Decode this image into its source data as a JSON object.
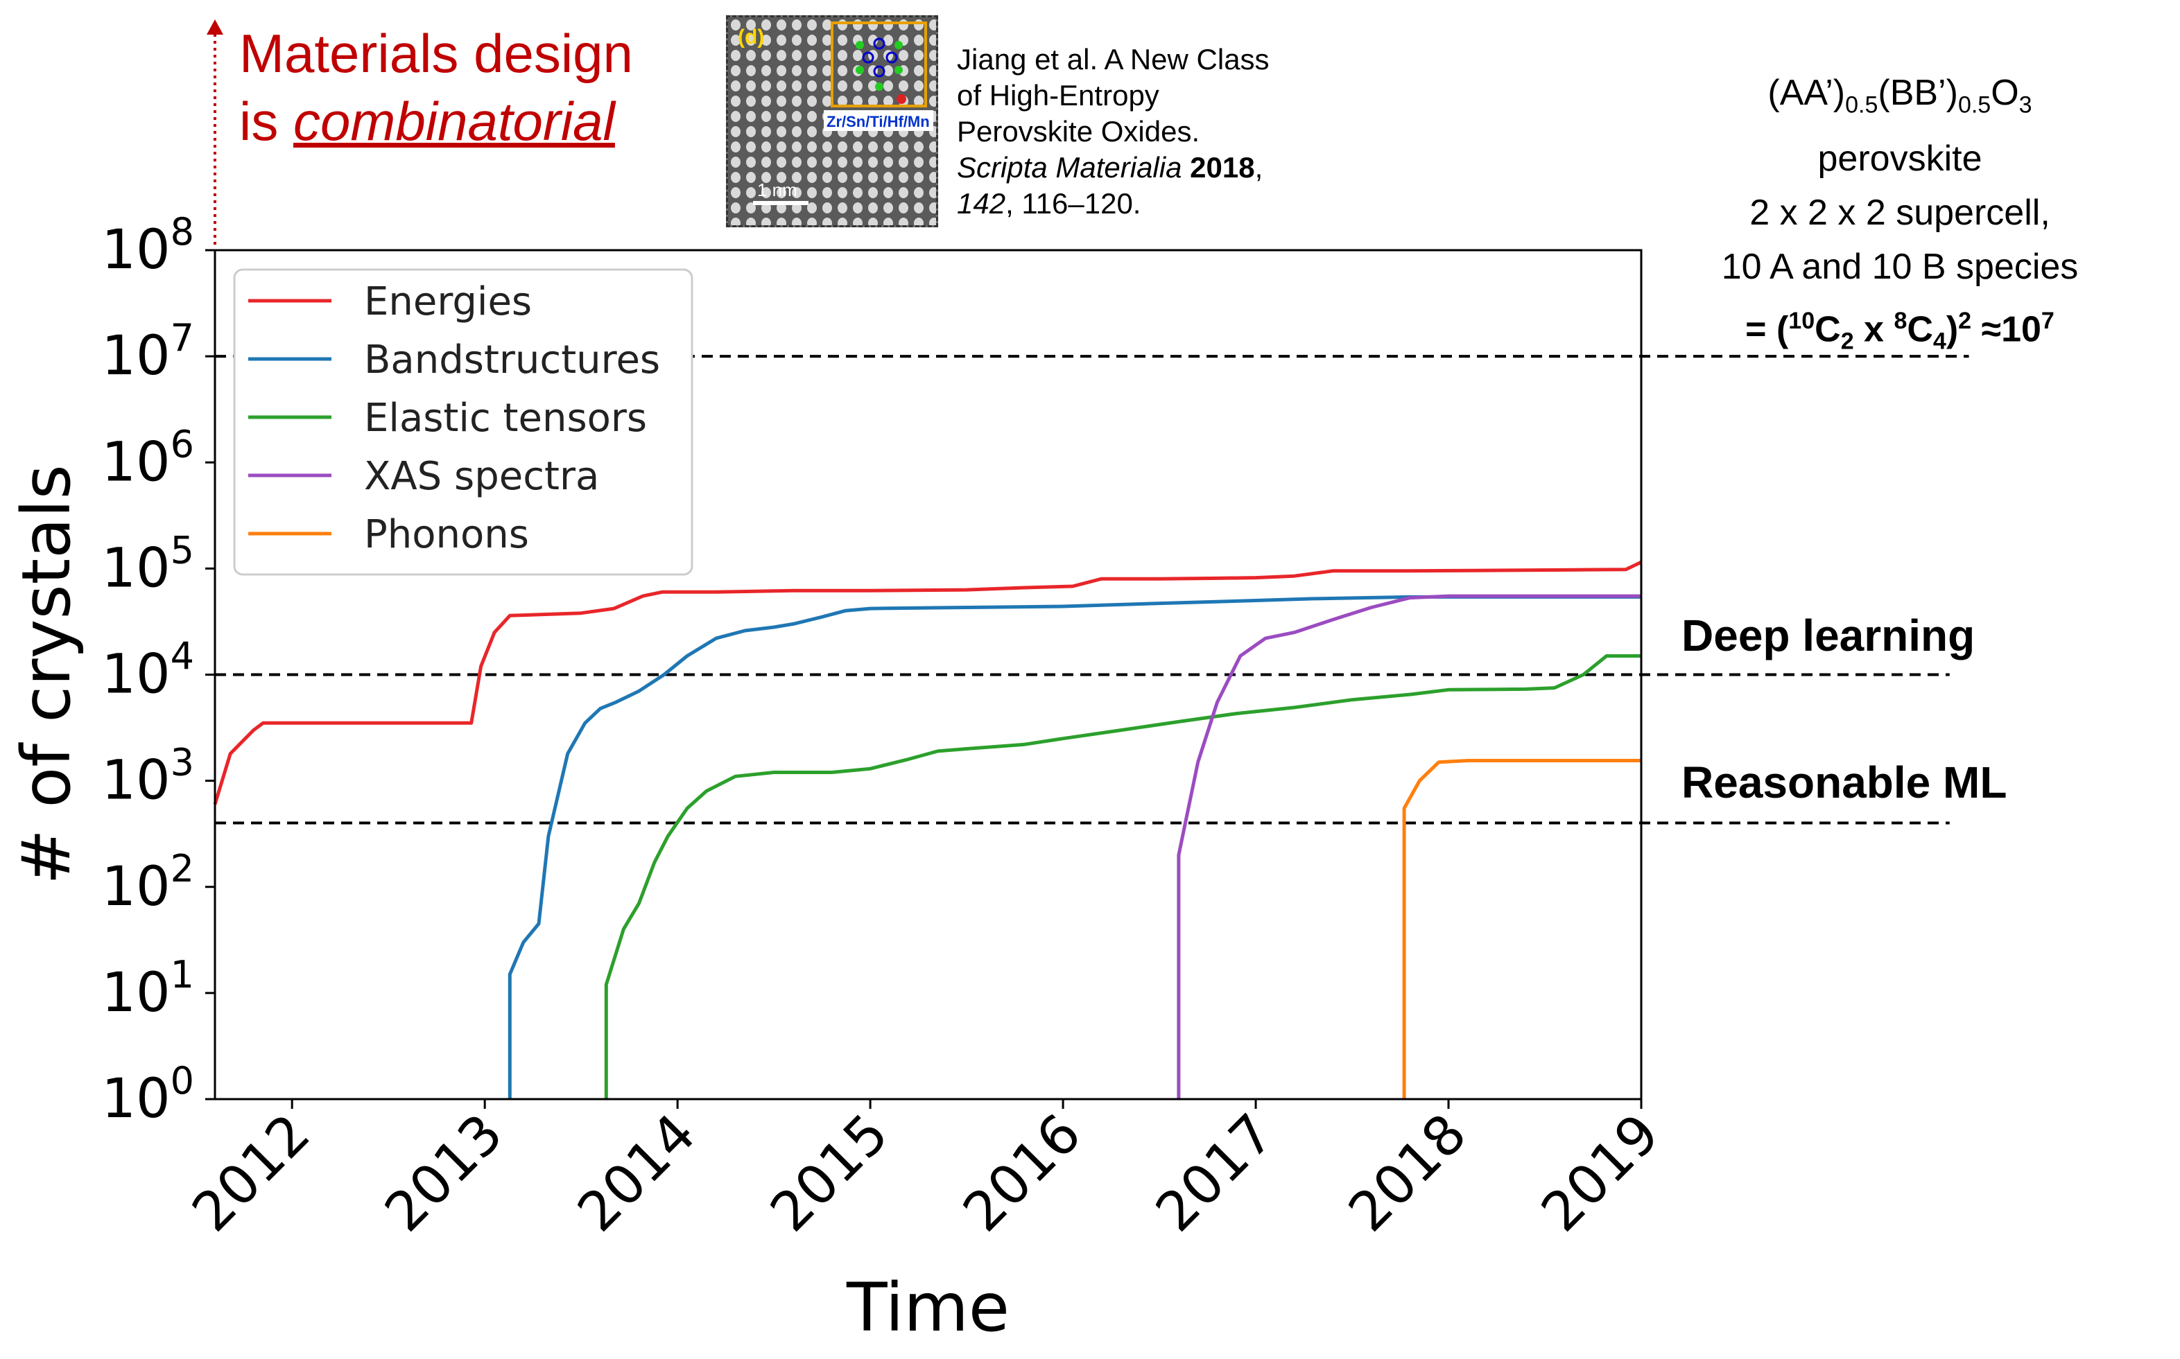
{
  "callout": {
    "line1": "Materials design",
    "line2_prefix": "is ",
    "line2_em": "combinatorial"
  },
  "inset_image": {
    "panel_label": "(d)",
    "scale_label": "1 nm",
    "element_label": "Zr/Sn/Ti/Hf/Mn"
  },
  "citation": {
    "line1": "Jiang et al. A New Class",
    "line2": "of High-Entropy",
    "line3": "Perovskite Oxides.",
    "journal": "Scripta Materialia",
    "year": "2018",
    "volume": "142",
    "pages": ", 116–120."
  },
  "formula": {
    "line1_a": "(AA’)",
    "line1_sub1": "0.5",
    "line1_b": "(BB’)",
    "line1_sub2": "0.5",
    "line1_c": "O",
    "line1_sub3": "3",
    "line2": "perovskite",
    "line3": "2 x 2 x 2 supercell,",
    "line4": "10 A and 10 B species",
    "line5_a": "= (",
    "line5_sup1": "10",
    "line5_b": "C",
    "line5_sub1": "2",
    "line5_c": " x ",
    "line5_sup2": "8",
    "line5_d": "C",
    "line5_sub2": "4",
    "line5_e": ")",
    "line5_sup3": "2",
    "line5_f": " ≈10",
    "line5_sup4": "7"
  },
  "thresholds": {
    "deep_learning": "Deep learning",
    "reasonable_ml": "Reasonable ML"
  },
  "chart_data": {
    "type": "line",
    "xlabel": "Time",
    "ylabel": "# of crystals",
    "yscale": "log",
    "ylim": [
      1,
      100000000
    ],
    "xlim": [
      2011.6,
      2019.0
    ],
    "x_ticks": [
      "2012",
      "2013",
      "2014",
      "2015",
      "2016",
      "2017",
      "2018",
      "2019"
    ],
    "y_ticks": [
      {
        "base": "10",
        "exp": "0",
        "value": 1
      },
      {
        "base": "10",
        "exp": "1",
        "value": 10
      },
      {
        "base": "10",
        "exp": "2",
        "value": 100
      },
      {
        "base": "10",
        "exp": "3",
        "value": 1000
      },
      {
        "base": "10",
        "exp": "4",
        "value": 10000
      },
      {
        "base": "10",
        "exp": "5",
        "value": 100000
      },
      {
        "base": "10",
        "exp": "6",
        "value": 1000000
      },
      {
        "base": "10",
        "exp": "7",
        "value": 10000000
      },
      {
        "base": "10",
        "exp": "8",
        "value": 100000000
      }
    ],
    "legend_position": "top-left",
    "reference_lines": [
      {
        "y": 10000000,
        "x_end": 2020.7
      },
      {
        "y": 10000,
        "x_end": 2020.6
      },
      {
        "y": 400,
        "x_end": 2020.6
      }
    ],
    "series": [
      {
        "name": "Energies",
        "color": "#e8262a",
        "points": [
          [
            2011.6,
            600
          ],
          [
            2011.68,
            1800
          ],
          [
            2011.8,
            3000
          ],
          [
            2011.85,
            3500
          ],
          [
            2012.2,
            3500
          ],
          [
            2012.6,
            3500
          ],
          [
            2012.93,
            3500
          ],
          [
            2012.98,
            12000
          ],
          [
            2013.05,
            25000
          ],
          [
            2013.13,
            36000
          ],
          [
            2013.5,
            38000
          ],
          [
            2013.67,
            42000
          ],
          [
            2013.82,
            55000
          ],
          [
            2013.92,
            60000
          ],
          [
            2014.2,
            60000
          ],
          [
            2014.6,
            62000
          ],
          [
            2015.0,
            62000
          ],
          [
            2015.5,
            63000
          ],
          [
            2015.8,
            66000
          ],
          [
            2016.05,
            68000
          ],
          [
            2016.2,
            80000
          ],
          [
            2016.5,
            80000
          ],
          [
            2016.8,
            81000
          ],
          [
            2017.0,
            82000
          ],
          [
            2017.2,
            85000
          ],
          [
            2017.4,
            95000
          ],
          [
            2017.8,
            95000
          ],
          [
            2018.2,
            96000
          ],
          [
            2018.6,
            97000
          ],
          [
            2018.92,
            98000
          ],
          [
            2019.0,
            115000
          ]
        ]
      },
      {
        "name": "Bandstructures",
        "color": "#1f77b4",
        "points": [
          [
            2013.13,
            1
          ],
          [
            2013.13,
            15
          ],
          [
            2013.2,
            30
          ],
          [
            2013.28,
            45
          ],
          [
            2013.33,
            300
          ],
          [
            2013.43,
            1800
          ],
          [
            2013.52,
            3500
          ],
          [
            2013.6,
            4800
          ],
          [
            2013.68,
            5500
          ],
          [
            2013.8,
            7000
          ],
          [
            2013.93,
            10000
          ],
          [
            2014.05,
            15000
          ],
          [
            2014.2,
            22000
          ],
          [
            2014.35,
            26000
          ],
          [
            2014.5,
            28000
          ],
          [
            2014.6,
            30000
          ],
          [
            2014.75,
            35000
          ],
          [
            2014.87,
            40000
          ],
          [
            2015.0,
            42000
          ],
          [
            2015.5,
            43000
          ],
          [
            2016.0,
            44000
          ],
          [
            2016.5,
            47000
          ],
          [
            2017.0,
            50000
          ],
          [
            2017.3,
            52000
          ],
          [
            2017.8,
            54000
          ],
          [
            2018.2,
            54000
          ],
          [
            2019.0,
            54000
          ]
        ]
      },
      {
        "name": "Elastic tensors",
        "color": "#2ca02c",
        "points": [
          [
            2013.63,
            1
          ],
          [
            2013.63,
            12
          ],
          [
            2013.72,
            40
          ],
          [
            2013.8,
            70
          ],
          [
            2013.88,
            170
          ],
          [
            2013.95,
            300
          ],
          [
            2014.05,
            550
          ],
          [
            2014.15,
            800
          ],
          [
            2014.3,
            1100
          ],
          [
            2014.5,
            1200
          ],
          [
            2014.8,
            1200
          ],
          [
            2015.0,
            1300
          ],
          [
            2015.2,
            1600
          ],
          [
            2015.35,
            1900
          ],
          [
            2015.5,
            2000
          ],
          [
            2015.8,
            2200
          ],
          [
            2016.0,
            2500
          ],
          [
            2016.3,
            3000
          ],
          [
            2016.6,
            3600
          ],
          [
            2016.9,
            4300
          ],
          [
            2017.2,
            4900
          ],
          [
            2017.5,
            5800
          ],
          [
            2017.8,
            6500
          ],
          [
            2018.0,
            7200
          ],
          [
            2018.4,
            7300
          ],
          [
            2018.55,
            7500
          ],
          [
            2018.7,
            10000
          ],
          [
            2018.82,
            15000
          ],
          [
            2019.0,
            15000
          ]
        ]
      },
      {
        "name": "XAS spectra",
        "color": "#9b4cc1",
        "points": [
          [
            2016.6,
            1
          ],
          [
            2016.6,
            200
          ],
          [
            2016.7,
            1500
          ],
          [
            2016.8,
            5500
          ],
          [
            2016.92,
            15000
          ],
          [
            2017.05,
            22000
          ],
          [
            2017.2,
            25000
          ],
          [
            2017.4,
            33000
          ],
          [
            2017.6,
            43000
          ],
          [
            2017.8,
            53000
          ],
          [
            2018.0,
            55000
          ],
          [
            2018.5,
            55000
          ],
          [
            2019.0,
            55000
          ]
        ]
      },
      {
        "name": "Phonons",
        "color": "#ff7f0e",
        "points": [
          [
            2017.77,
            1
          ],
          [
            2017.77,
            550
          ],
          [
            2017.85,
            1000
          ],
          [
            2017.95,
            1500
          ],
          [
            2018.1,
            1550
          ],
          [
            2018.5,
            1550
          ],
          [
            2019.0,
            1550
          ]
        ]
      }
    ]
  }
}
